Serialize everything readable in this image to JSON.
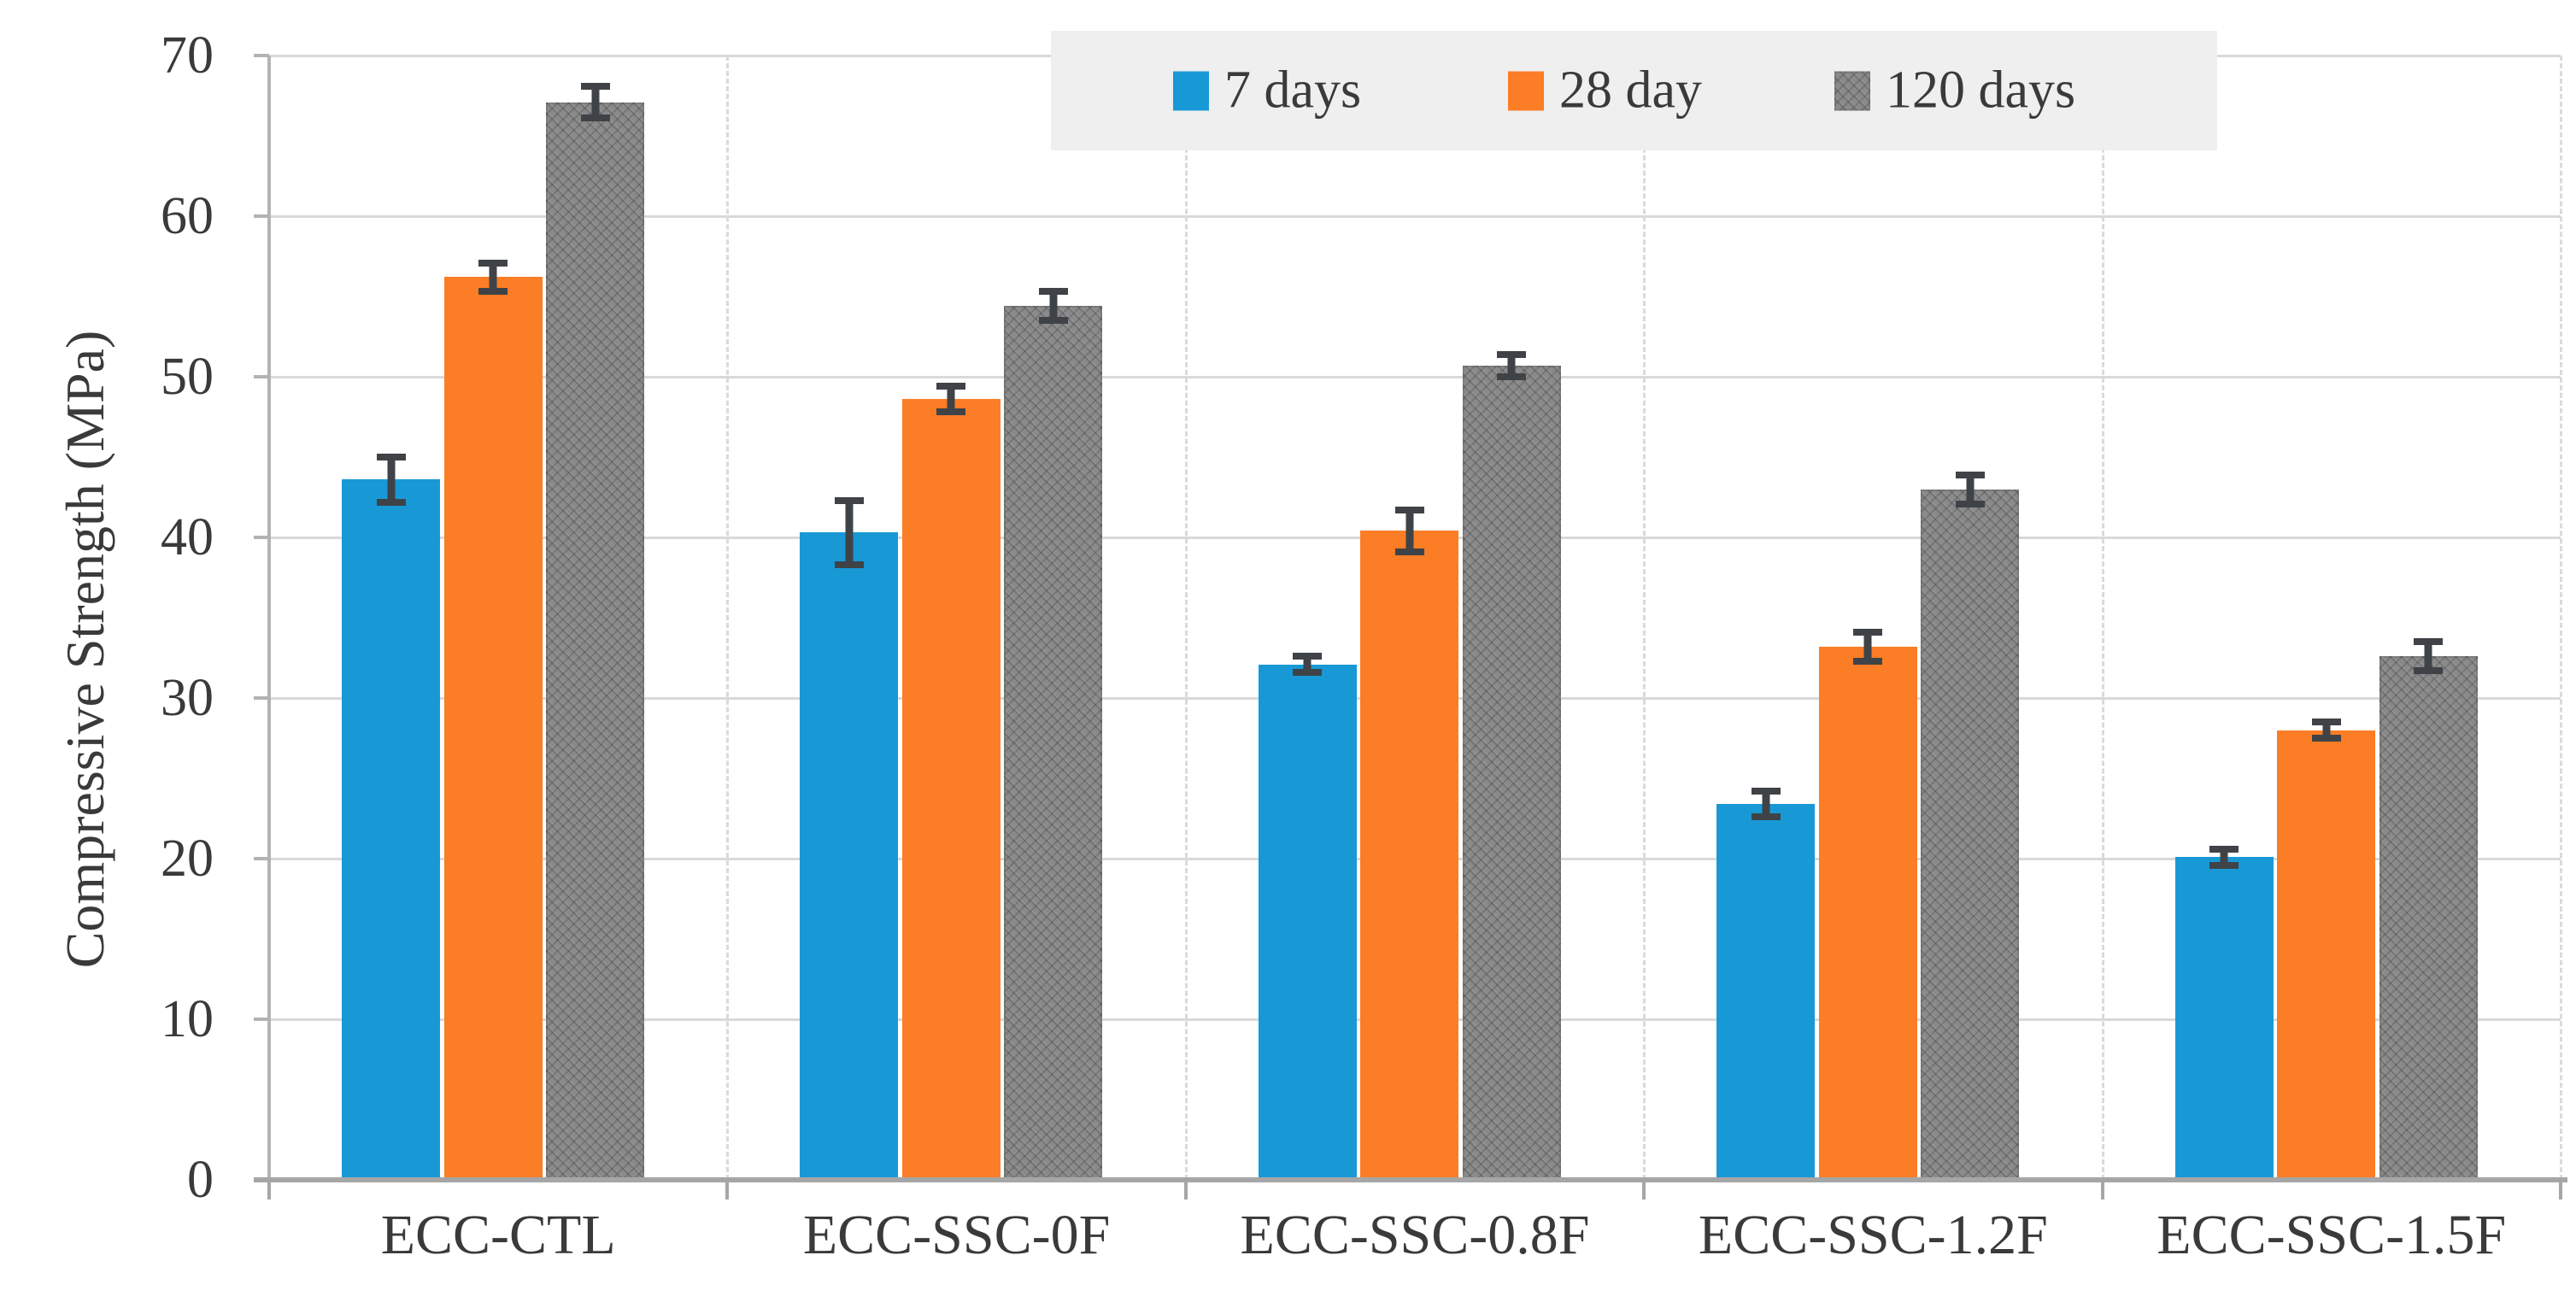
{
  "chart_data": {
    "type": "bar",
    "title": "",
    "ylabel": "Compressive Strength (MPa)",
    "xlabel": "",
    "ylim": [
      0,
      70
    ],
    "yticks": [
      0,
      10,
      20,
      30,
      40,
      50,
      60,
      70
    ],
    "grid": true,
    "legend_position": "top-right",
    "categories": [
      "ECC-CTL",
      "ECC-SSC-0F",
      "ECC-SSC-0.8F",
      "ECC-SSC-1.2F",
      "ECC-SSC-1.5F"
    ],
    "series": [
      {
        "name": "7 days",
        "color": "#1899D6",
        "pattern": "solid",
        "values": [
          43.6,
          40.3,
          32.1,
          23.4,
          20.1
        ],
        "errors": [
          1.4,
          2.0,
          0.5,
          0.8,
          0.5
        ]
      },
      {
        "name": "28 day",
        "color": "#FB7D26",
        "pattern": "solid",
        "values": [
          56.2,
          48.6,
          40.4,
          33.2,
          28.0
        ],
        "errors": [
          0.9,
          0.8,
          1.3,
          0.9,
          0.5
        ]
      },
      {
        "name": "120 days",
        "color": "#8A8A8A",
        "pattern": "crosshatch",
        "values": [
          67.1,
          54.4,
          50.7,
          43.0,
          32.6
        ],
        "errors": [
          1.0,
          0.9,
          0.7,
          0.9,
          0.9
        ]
      }
    ],
    "colors": {
      "grid": "#D9D9D9",
      "axis": "#A6A6A6",
      "error_bar": "#3F4347",
      "legend_bg": "#EFEFEF",
      "text": "#3A3A3A",
      "background": "#FFFFFF"
    }
  }
}
